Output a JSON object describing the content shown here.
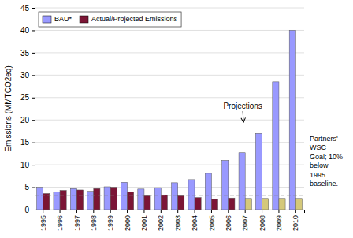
{
  "chart_data": {
    "type": "bar",
    "categories": [
      "1995",
      "1996",
      "1997",
      "1998",
      "1999",
      "2000",
      "2001",
      "2002",
      "2003",
      "2004",
      "2005",
      "2006",
      "2007",
      "2008",
      "2009",
      "2010"
    ],
    "series": [
      {
        "name": "BAU*",
        "color": "#9999FF",
        "values": [
          5.0,
          4.0,
          4.7,
          4.1,
          5.1,
          6.1,
          4.6,
          4.9,
          6.0,
          6.7,
          8.1,
          11.0,
          12.7,
          17.0,
          28.5,
          40.0
        ]
      },
      {
        "name": "Actual/Projected Emissions",
        "colors": [
          "#7B1535",
          "#7B1535",
          "#7B1535",
          "#7B1535",
          "#7B1535",
          "#7B1535",
          "#7B1535",
          "#7B1535",
          "#7B1535",
          "#7B1535",
          "#7B1535",
          "#7B1535",
          "#D4C87A",
          "#D4C87A",
          "#D4C87A",
          "#D4C87A"
        ],
        "values": [
          3.6,
          4.3,
          4.4,
          4.7,
          5.0,
          4.0,
          3.1,
          3.3,
          3.1,
          2.7,
          2.3,
          2.6,
          2.5,
          2.5,
          2.5,
          2.5
        ]
      }
    ],
    "y_label": "Emissions (MMTCO2eq)",
    "ylim": [
      0,
      45
    ],
    "yticks": [
      0,
      5,
      10,
      15,
      20,
      25,
      30,
      35,
      40,
      45
    ],
    "grid": true,
    "legend": "upper left",
    "annotations": [
      "Projections"
    ],
    "reference_lines": [
      {
        "value": 3.24,
        "line_style": "dashed",
        "label": [
          "Partners'",
          "WSC",
          "Goal; 10%",
          "below",
          "1995",
          "baseline."
        ]
      }
    ]
  }
}
